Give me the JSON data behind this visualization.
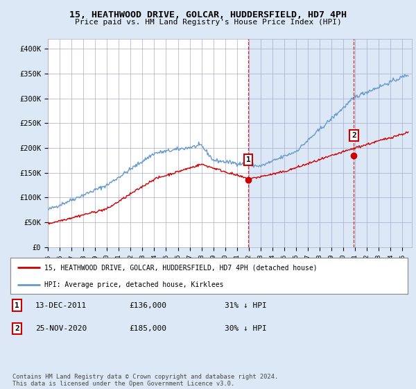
{
  "title": "15, HEATHWOOD DRIVE, GOLCAR, HUDDERSFIELD, HD7 4PH",
  "subtitle": "Price paid vs. HM Land Registry's House Price Index (HPI)",
  "ylim": [
    0,
    420000
  ],
  "yticks": [
    0,
    50000,
    100000,
    150000,
    200000,
    250000,
    300000,
    350000,
    400000
  ],
  "ytick_labels": [
    "£0",
    "£50K",
    "£100K",
    "£150K",
    "£200K",
    "£250K",
    "£300K",
    "£350K",
    "£400K"
  ],
  "xlim_start": 1995.0,
  "xlim_end": 2025.8,
  "bg_color": "#dce8f5",
  "plot_bg_color": "#dce8f5",
  "plot_left_bg": "#ffffff",
  "grid_color": "#aaaacc",
  "red_line_color": "#cc0000",
  "blue_line_color": "#6699cc",
  "marker1_date": 2011.95,
  "marker1_price": 136000,
  "marker2_date": 2020.9,
  "marker2_price": 185000,
  "legend_label_red": "15, HEATHWOOD DRIVE, GOLCAR, HUDDERSFIELD, HD7 4PH (detached house)",
  "legend_label_blue": "HPI: Average price, detached house, Kirklees",
  "note1_date": "13-DEC-2011",
  "note1_price": "£136,000",
  "note1_hpi": "31% ↓ HPI",
  "note2_date": "25-NOV-2020",
  "note2_price": "£185,000",
  "note2_hpi": "30% ↓ HPI",
  "footer": "Contains HM Land Registry data © Crown copyright and database right 2024.\nThis data is licensed under the Open Government Licence v3.0."
}
